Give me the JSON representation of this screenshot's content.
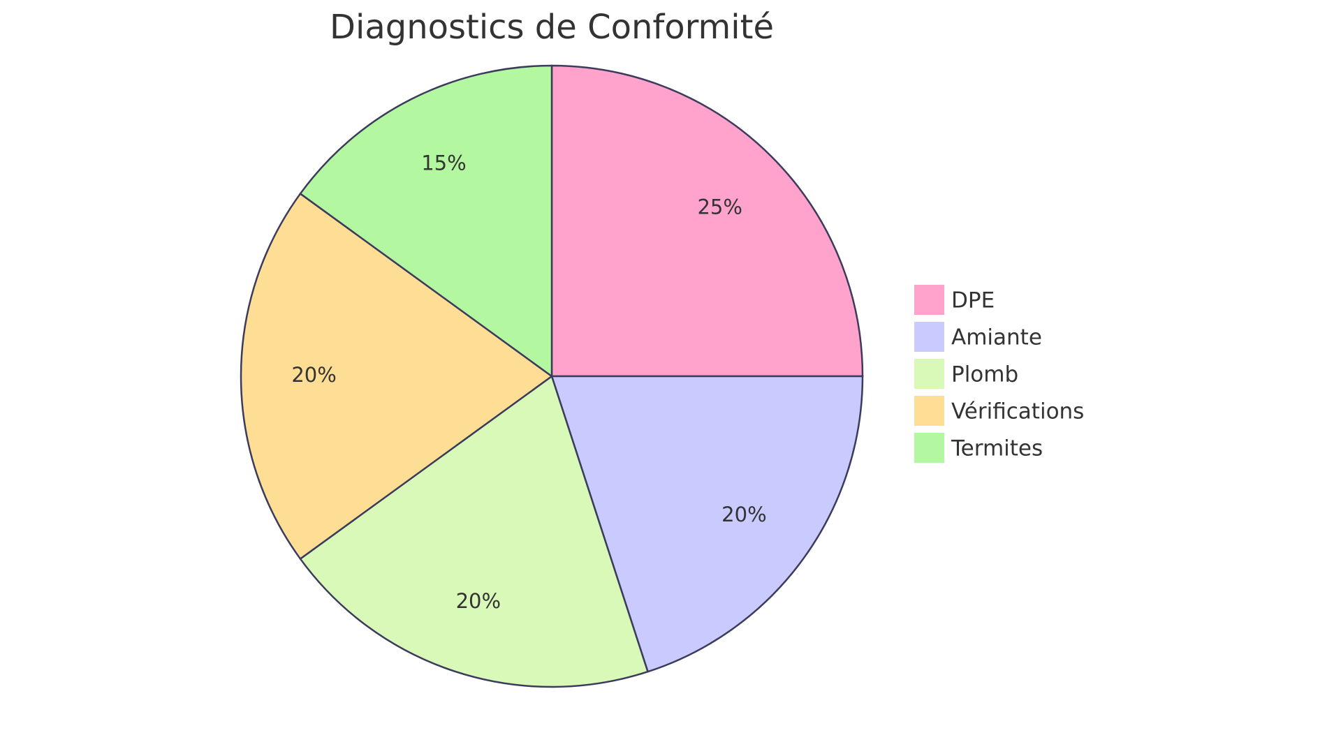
{
  "chart_data": {
    "type": "pie",
    "title": "Diagnostics de Conformité",
    "categories": [
      "DPE",
      "Amiante",
      "Plomb",
      "Vérifications",
      "Termites"
    ],
    "values": [
      25,
      20,
      20,
      20,
      15
    ],
    "value_labels": [
      "25%",
      "20%",
      "20%",
      "20%",
      "15%"
    ],
    "colors": [
      "#ffa3cc",
      "#c9cbff",
      "#d9f9b9",
      "#fedd94",
      "#b3f8a0"
    ],
    "legend": "right"
  }
}
